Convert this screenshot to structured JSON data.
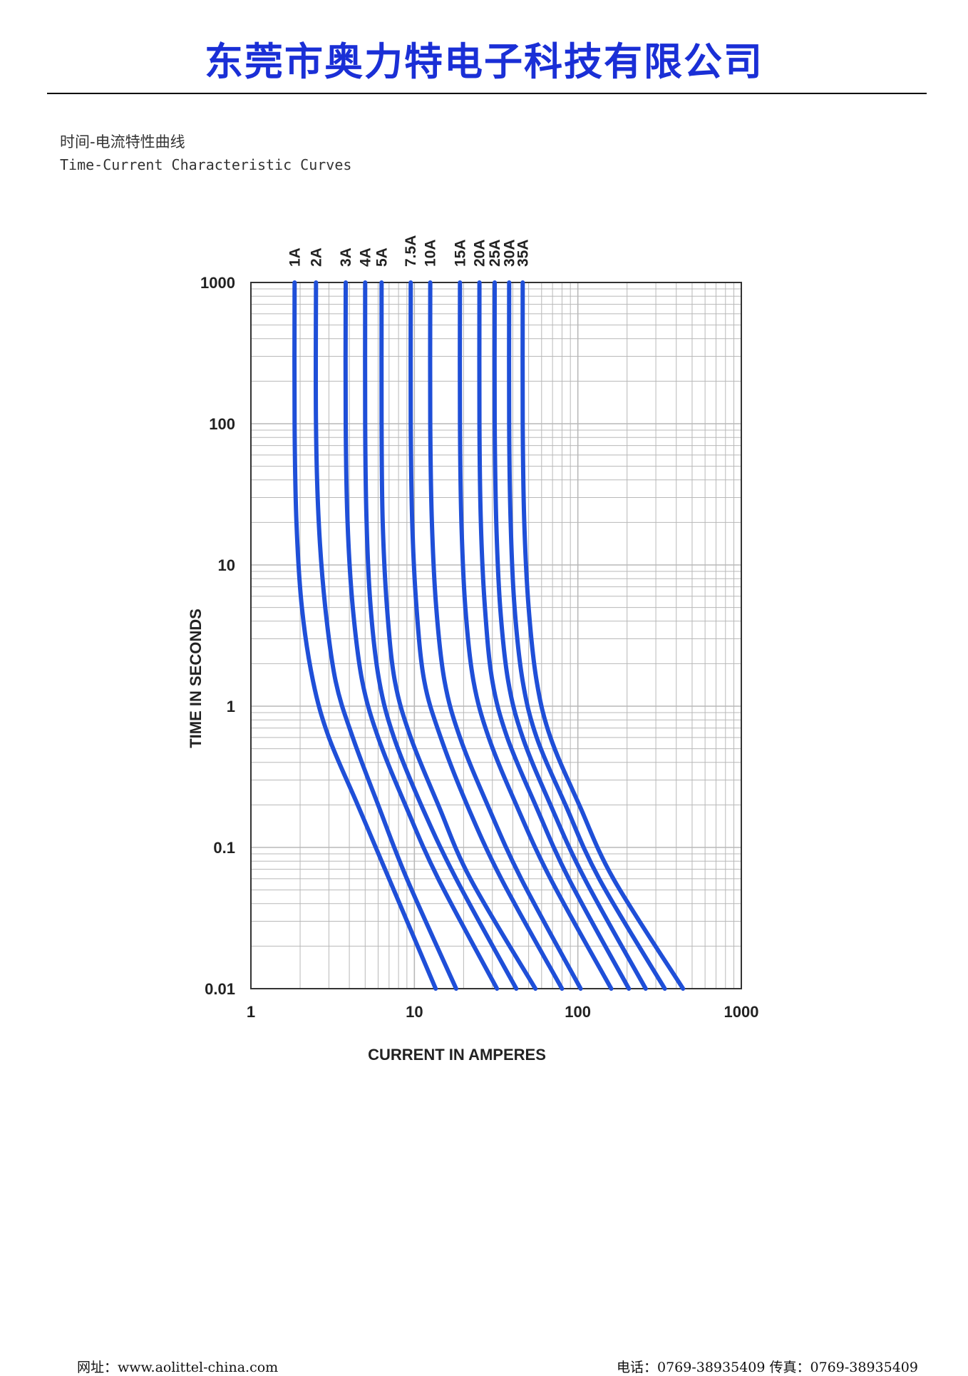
{
  "header": {
    "company_name": "东莞市奥力特电子科技有限公司",
    "subtitle_cn": "时间-电流特性曲线",
    "subtitle_en": "Time-Current Characteristic Curves"
  },
  "footer": {
    "website": "网址：www.aolittel-china.com",
    "contact": "电话：0769-38935409 传真：0769-38935409"
  },
  "colors": {
    "brand": "#1a2fd6",
    "curve": "#1f4fd8",
    "grid": "#b8b8b8"
  },
  "chart_data": {
    "type": "line",
    "xlabel": "CURRENT IN AMPERES",
    "ylabel": "TIME IN SECONDS",
    "x_scale": "log",
    "y_scale": "log",
    "xlim": [
      1,
      1000
    ],
    "ylim": [
      0.01,
      1000
    ],
    "x_ticks": [
      "1",
      "10",
      "100",
      "1000"
    ],
    "y_ticks": [
      "1000",
      "100",
      "10",
      "1",
      "0.1",
      "0.01"
    ],
    "grid": true,
    "series": [
      {
        "name": "1A",
        "points": [
          [
            1.85,
            1000
          ],
          [
            1.85,
            100
          ],
          [
            1.9,
            20
          ],
          [
            2.05,
            5
          ],
          [
            2.4,
            1.5
          ],
          [
            3.0,
            0.6
          ],
          [
            4.5,
            0.2
          ],
          [
            7,
            0.06
          ],
          [
            13.5,
            0.01
          ]
        ]
      },
      {
        "name": "2A",
        "points": [
          [
            2.5,
            1000
          ],
          [
            2.5,
            100
          ],
          [
            2.6,
            20
          ],
          [
            2.85,
            5
          ],
          [
            3.3,
            1.5
          ],
          [
            4.2,
            0.6
          ],
          [
            6.0,
            0.2
          ],
          [
            9,
            0.06
          ],
          [
            18,
            0.01
          ]
        ]
      },
      {
        "name": "3A",
        "points": [
          [
            3.8,
            1000
          ],
          [
            3.8,
            100
          ],
          [
            3.9,
            20
          ],
          [
            4.2,
            5
          ],
          [
            4.8,
            1.5
          ],
          [
            6.0,
            0.6
          ],
          [
            8.8,
            0.2
          ],
          [
            14,
            0.06
          ],
          [
            32,
            0.01
          ]
        ]
      },
      {
        "name": "4A",
        "points": [
          [
            5.0,
            1000
          ],
          [
            5.0,
            100
          ],
          [
            5.1,
            20
          ],
          [
            5.4,
            5
          ],
          [
            6.1,
            1.5
          ],
          [
            7.5,
            0.6
          ],
          [
            11,
            0.2
          ],
          [
            18,
            0.06
          ],
          [
            42,
            0.01
          ]
        ]
      },
      {
        "name": "5A",
        "points": [
          [
            6.3,
            1000
          ],
          [
            6.3,
            100
          ],
          [
            6.4,
            20
          ],
          [
            6.8,
            5
          ],
          [
            7.6,
            1.5
          ],
          [
            9.5,
            0.6
          ],
          [
            14,
            0.2
          ],
          [
            22,
            0.06
          ],
          [
            55,
            0.01
          ]
        ]
      },
      {
        "name": "7.5A",
        "points": [
          [
            9.5,
            1000
          ],
          [
            9.5,
            100
          ],
          [
            9.7,
            20
          ],
          [
            10.3,
            5
          ],
          [
            11.5,
            1.5
          ],
          [
            14.5,
            0.6
          ],
          [
            21,
            0.2
          ],
          [
            34,
            0.06
          ],
          [
            80,
            0.01
          ]
        ]
      },
      {
        "name": "10A",
        "points": [
          [
            12.5,
            1000
          ],
          [
            12.5,
            100
          ],
          [
            12.8,
            20
          ],
          [
            13.6,
            5
          ],
          [
            15.3,
            1.5
          ],
          [
            19,
            0.6
          ],
          [
            28,
            0.2
          ],
          [
            45,
            0.06
          ],
          [
            104,
            0.01
          ]
        ]
      },
      {
        "name": "15A",
        "points": [
          [
            19,
            1000
          ],
          [
            19,
            100
          ],
          [
            19.4,
            20
          ],
          [
            20.5,
            5
          ],
          [
            23,
            1.5
          ],
          [
            28.5,
            0.6
          ],
          [
            42,
            0.2
          ],
          [
            68,
            0.06
          ],
          [
            160,
            0.01
          ]
        ]
      },
      {
        "name": "20A",
        "points": [
          [
            25,
            1000
          ],
          [
            25,
            100
          ],
          [
            25.5,
            20
          ],
          [
            27,
            5
          ],
          [
            30,
            1.5
          ],
          [
            37,
            0.6
          ],
          [
            55,
            0.2
          ],
          [
            88,
            0.06
          ],
          [
            205,
            0.01
          ]
        ]
      },
      {
        "name": "25A",
        "points": [
          [
            31,
            1000
          ],
          [
            31,
            100
          ],
          [
            31.7,
            20
          ],
          [
            33.5,
            5
          ],
          [
            37.5,
            1.5
          ],
          [
            46,
            0.6
          ],
          [
            68,
            0.2
          ],
          [
            110,
            0.06
          ],
          [
            260,
            0.01
          ]
        ]
      },
      {
        "name": "30A",
        "points": [
          [
            38,
            1000
          ],
          [
            38,
            100
          ],
          [
            38.8,
            20
          ],
          [
            41,
            5
          ],
          [
            46,
            1.5
          ],
          [
            56,
            0.6
          ],
          [
            84,
            0.2
          ],
          [
            135,
            0.06
          ],
          [
            340,
            0.01
          ]
        ]
      },
      {
        "name": "35A",
        "points": [
          [
            46,
            1000
          ],
          [
            46,
            100
          ],
          [
            47,
            20
          ],
          [
            50,
            5
          ],
          [
            56,
            1.5
          ],
          [
            68,
            0.6
          ],
          [
            102,
            0.2
          ],
          [
            165,
            0.06
          ],
          [
            440,
            0.01
          ]
        ]
      }
    ]
  }
}
